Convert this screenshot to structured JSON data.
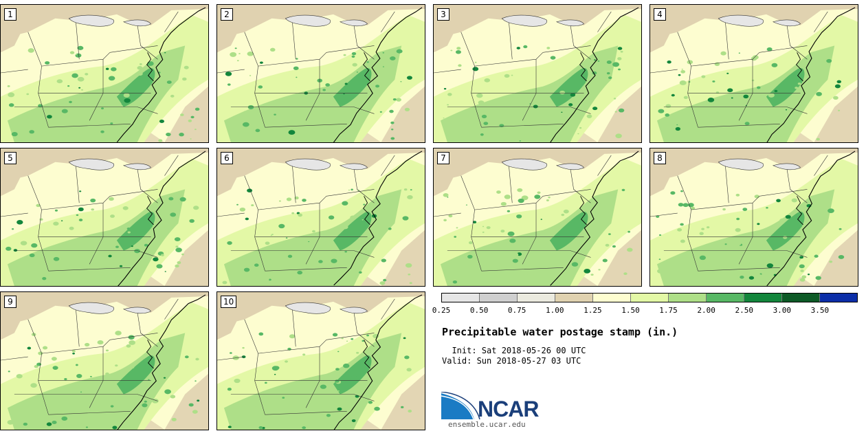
{
  "panels": [
    {
      "label": "1",
      "seed": 1
    },
    {
      "label": "2",
      "seed": 2
    },
    {
      "label": "3",
      "seed": 3
    },
    {
      "label": "4",
      "seed": 4
    },
    {
      "label": "5",
      "seed": 5
    },
    {
      "label": "6",
      "seed": 6
    },
    {
      "label": "7",
      "seed": 7
    },
    {
      "label": "8",
      "seed": 8
    },
    {
      "label": "9",
      "seed": 9
    },
    {
      "label": "10",
      "seed": 10
    }
  ],
  "colorbar": {
    "ticks": [
      "0.25",
      "0.50",
      "0.75",
      "1.00",
      "1.25",
      "1.50",
      "1.75",
      "2.00",
      "2.50",
      "3.00",
      "3.50"
    ],
    "colors": [
      "#e6e6e6",
      "#cfcfcf",
      "#ebeadf",
      "#e0d2b0",
      "#fdfdd0",
      "#e3f8a6",
      "#aedf88",
      "#58b865",
      "#13863c",
      "#0d5a27",
      "#0b2ea8"
    ]
  },
  "title": "Precipitable water postage stamp (in.)",
  "init_line": "  Init: Sat 2018-05-26 00 UTC",
  "valid_line": "Valid: Sun 2018-05-27 03 UTC",
  "logo": {
    "name": "NCAR",
    "colors": {
      "primary": "#1b3f7a",
      "accent": "#1a7bc4"
    }
  },
  "website": "ensemble.ucar.edu",
  "map_colors": {
    "background": "#fdfdd0",
    "tan": "#e0d2b0",
    "light_green": "#e3f8a6",
    "mid_green": "#aedf88",
    "green": "#58b865",
    "dark_green": "#13863c",
    "gray": "#e6e6e6"
  }
}
